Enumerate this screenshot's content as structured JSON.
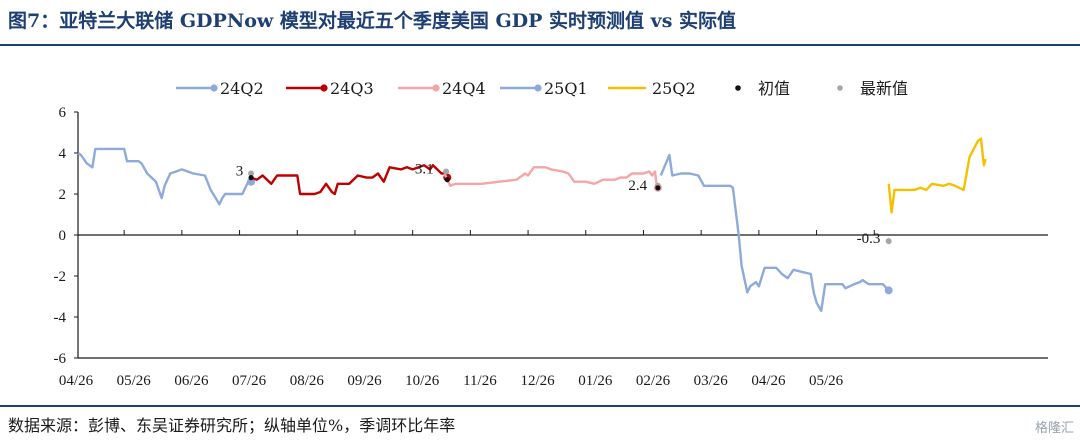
{
  "header": {
    "title": "图7：亚特兰大联储 GDPNow 模型对最近五个季度美国 GDP 实时预测值 vs 实际值"
  },
  "footer": {
    "source": "数据来源：彭博、东吴证券研究所；纵轴单位%，季调环比年率",
    "watermark": "格隆汇"
  },
  "chart_data": {
    "type": "line",
    "ylim": [
      -6,
      6
    ],
    "yticks": [
      -6,
      -4,
      -2,
      0,
      2,
      4,
      6
    ],
    "xticks": [
      "04/26",
      "05/26",
      "06/26",
      "07/26",
      "08/26",
      "09/26",
      "10/26",
      "11/26",
      "12/26",
      "01/26",
      "02/26",
      "03/26",
      "04/26",
      "05/26"
    ],
    "grid": false,
    "legend_position": "top",
    "series": [
      {
        "name": "24Q2",
        "color": "#8eaadb",
        "points": [
          [
            0,
            4.0
          ],
          [
            0.05,
            3.9
          ],
          [
            0.15,
            3.5
          ],
          [
            0.25,
            3.3
          ],
          [
            0.3,
            4.2
          ],
          [
            0.5,
            4.2
          ],
          [
            0.8,
            4.2
          ],
          [
            0.85,
            3.6
          ],
          [
            1.05,
            3.6
          ],
          [
            1.1,
            3.5
          ],
          [
            1.2,
            3.0
          ],
          [
            1.35,
            2.6
          ],
          [
            1.45,
            1.8
          ],
          [
            1.5,
            2.4
          ],
          [
            1.6,
            3.0
          ],
          [
            1.7,
            3.1
          ],
          [
            1.8,
            3.2
          ],
          [
            1.9,
            3.1
          ],
          [
            2.0,
            3.0
          ],
          [
            2.2,
            2.9
          ],
          [
            2.3,
            2.2
          ],
          [
            2.45,
            1.5
          ],
          [
            2.5,
            1.8
          ],
          [
            2.55,
            2.0
          ],
          [
            2.85,
            2.0
          ],
          [
            2.95,
            2.6
          ],
          [
            3.0,
            2.6
          ]
        ],
        "end_marker": [
          3.0,
          2.6
        ]
      },
      {
        "name": "24Q3",
        "color": "#c00000",
        "points": [
          [
            3.0,
            2.8
          ],
          [
            3.1,
            2.7
          ],
          [
            3.2,
            2.9
          ],
          [
            3.35,
            2.5
          ],
          [
            3.45,
            2.9
          ],
          [
            3.8,
            2.9
          ],
          [
            3.85,
            2.0
          ],
          [
            4.1,
            2.0
          ],
          [
            4.2,
            2.1
          ],
          [
            4.3,
            2.5
          ],
          [
            4.4,
            2.1
          ],
          [
            4.45,
            2.0
          ],
          [
            4.5,
            2.5
          ],
          [
            4.7,
            2.5
          ],
          [
            4.85,
            2.9
          ],
          [
            5.0,
            2.8
          ],
          [
            5.1,
            2.8
          ],
          [
            5.2,
            3.0
          ],
          [
            5.3,
            2.6
          ],
          [
            5.4,
            3.3
          ],
          [
            5.6,
            3.2
          ],
          [
            5.7,
            3.3
          ],
          [
            5.8,
            3.2
          ],
          [
            5.9,
            3.3
          ],
          [
            6.0,
            3.4
          ],
          [
            6.1,
            3.2
          ],
          [
            6.15,
            3.4
          ],
          [
            6.3,
            3.0
          ],
          [
            6.35,
            3.0
          ],
          [
            6.4,
            2.8
          ]
        ],
        "end_marker": [
          6.4,
          2.8
        ]
      },
      {
        "name": "24Q4",
        "color": "#f4a6a6",
        "points": [
          [
            6.35,
            3.0
          ],
          [
            6.45,
            2.4
          ],
          [
            6.55,
            2.5
          ],
          [
            6.7,
            2.5
          ],
          [
            7.0,
            2.5
          ],
          [
            7.3,
            2.6
          ],
          [
            7.6,
            2.7
          ],
          [
            7.75,
            3.0
          ],
          [
            7.8,
            2.9
          ],
          [
            7.9,
            3.3
          ],
          [
            8.1,
            3.3
          ],
          [
            8.2,
            3.2
          ],
          [
            8.4,
            3.1
          ],
          [
            8.5,
            3.0
          ],
          [
            8.6,
            2.6
          ],
          [
            8.8,
            2.6
          ],
          [
            8.95,
            2.5
          ],
          [
            9.1,
            2.7
          ],
          [
            9.3,
            2.7
          ],
          [
            9.4,
            2.8
          ],
          [
            9.5,
            2.8
          ],
          [
            9.6,
            3.0
          ],
          [
            9.8,
            3.0
          ],
          [
            9.9,
            3.1
          ],
          [
            9.95,
            2.9
          ],
          [
            10.0,
            3.1
          ],
          [
            10.02,
            2.6
          ],
          [
            10.05,
            2.3
          ]
        ],
        "end_marker": [
          10.05,
          2.3
        ]
      },
      {
        "name": "25Q1",
        "color": "#8eaadb",
        "points": [
          [
            10.1,
            2.9
          ],
          [
            10.25,
            3.9
          ],
          [
            10.3,
            2.9
          ],
          [
            10.45,
            3.0
          ],
          [
            10.6,
            3.0
          ],
          [
            10.75,
            2.9
          ],
          [
            10.85,
            2.4
          ],
          [
            11.0,
            2.4
          ],
          [
            11.3,
            2.4
          ],
          [
            11.35,
            2.3
          ],
          [
            11.45,
            0.0
          ],
          [
            11.5,
            -1.5
          ],
          [
            11.6,
            -2.8
          ],
          [
            11.65,
            -2.5
          ],
          [
            11.75,
            -2.3
          ],
          [
            11.8,
            -2.5
          ],
          [
            11.9,
            -1.6
          ],
          [
            12.1,
            -1.6
          ],
          [
            12.2,
            -1.9
          ],
          [
            12.3,
            -2.1
          ],
          [
            12.4,
            -1.7
          ],
          [
            12.55,
            -1.8
          ],
          [
            12.7,
            -1.9
          ],
          [
            12.75,
            -2.8
          ],
          [
            12.8,
            -3.3
          ],
          [
            12.88,
            -3.7
          ],
          [
            12.95,
            -2.4
          ],
          [
            13.25,
            -2.4
          ],
          [
            13.3,
            -2.6
          ],
          [
            13.45,
            -2.4
          ],
          [
            13.55,
            -2.3
          ],
          [
            13.6,
            -2.2
          ],
          [
            13.7,
            -2.4
          ],
          [
            13.95,
            -2.4
          ],
          [
            14.05,
            -2.7
          ]
        ],
        "end_marker": [
          14.05,
          -2.7
        ]
      },
      {
        "name": "25Q2",
        "color": "#f5c000",
        "points": [
          [
            14.05,
            2.5
          ],
          [
            14.1,
            1.1
          ],
          [
            14.15,
            2.2
          ],
          [
            14.25,
            2.2
          ],
          [
            14.5,
            2.2
          ],
          [
            14.6,
            2.3
          ],
          [
            14.7,
            2.2
          ],
          [
            14.8,
            2.5
          ],
          [
            15.0,
            2.4
          ],
          [
            15.1,
            2.5
          ],
          [
            15.2,
            2.4
          ],
          [
            15.35,
            2.2
          ],
          [
            15.45,
            3.8
          ],
          [
            15.6,
            4.6
          ],
          [
            15.65,
            4.7
          ],
          [
            15.7,
            3.4
          ],
          [
            15.73,
            3.7
          ]
        ]
      }
    ],
    "initial_value": {
      "name": "初值",
      "color": "#111111",
      "points": [
        [
          3.0,
          2.8
        ],
        [
          6.4,
          2.7
        ],
        [
          10.05,
          2.3
        ]
      ]
    },
    "latest_value": {
      "name": "最新值",
      "color": "#a6a6a6",
      "points": [
        [
          3.0,
          3.0
        ],
        [
          6.38,
          3.1
        ],
        [
          10.05,
          2.4
        ],
        [
          14.05,
          -0.3
        ]
      ]
    },
    "annotations": [
      {
        "text": "3",
        "x": 2.8,
        "y": 2.9
      },
      {
        "text": "3.1",
        "x": 6.0,
        "y": 3.0
      },
      {
        "text": "2.4",
        "x": 9.7,
        "y": 2.2
      },
      {
        "text": "-0.3",
        "x": 13.7,
        "y": -0.4
      }
    ]
  }
}
